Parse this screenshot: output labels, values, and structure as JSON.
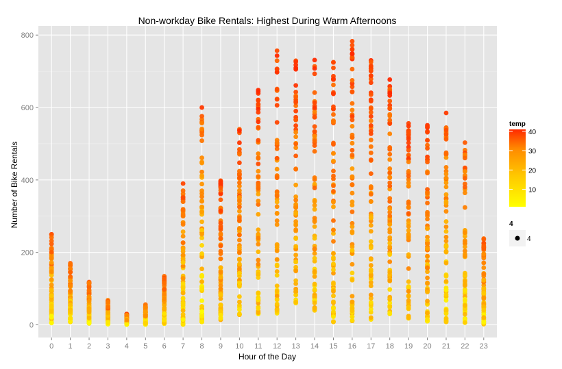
{
  "chart_data": {
    "type": "scatter",
    "title": "Non-workday Bike Rentals: Highest During Warm Afternoons",
    "xlabel": "Hour of the Day",
    "ylabel": "Number of Bike Rentals",
    "x_ticks": [
      "0",
      "1",
      "2",
      "3",
      "4",
      "5",
      "6",
      "7",
      "8",
      "9",
      "10",
      "11",
      "12",
      "13",
      "14",
      "15",
      "16",
      "17",
      "18",
      "19",
      "20",
      "21",
      "22",
      "23"
    ],
    "y_ticks": [
      0,
      200,
      400,
      600,
      800
    ],
    "xlim": [
      -0.7,
      23.7
    ],
    "ylim": [
      -35,
      825
    ],
    "grid": true,
    "color_legend": {
      "title": "temp",
      "ticks": [
        10,
        20,
        30,
        40
      ],
      "range": [
        1,
        41
      ],
      "low_color": "#FFFF00",
      "high_color": "#FF2A00"
    },
    "size_legend": {
      "title": "4",
      "label": "4"
    },
    "legend_position": "right",
    "hour_ranges": [
      {
        "hour": 0,
        "min": 5,
        "max": 250
      },
      {
        "hour": 1,
        "min": 8,
        "max": 170
      },
      {
        "hour": 2,
        "min": 4,
        "max": 118
      },
      {
        "hour": 3,
        "min": 2,
        "max": 68
      },
      {
        "hour": 4,
        "min": 1,
        "max": 30
      },
      {
        "hour": 5,
        "min": 1,
        "max": 56
      },
      {
        "hour": 6,
        "min": 3,
        "max": 134
      },
      {
        "hour": 7,
        "min": 1,
        "max": 390
      },
      {
        "hour": 8,
        "min": 8,
        "max": 600
      },
      {
        "hour": 9,
        "min": 14,
        "max": 398
      },
      {
        "hour": 10,
        "min": 28,
        "max": 540
      },
      {
        "hour": 11,
        "min": 30,
        "max": 648
      },
      {
        "hour": 12,
        "min": 32,
        "max": 757
      },
      {
        "hour": 13,
        "min": 60,
        "max": 729
      },
      {
        "hour": 14,
        "min": 40,
        "max": 731
      },
      {
        "hour": 15,
        "min": 8,
        "max": 725
      },
      {
        "hour": 16,
        "min": 11,
        "max": 783
      },
      {
        "hour": 17,
        "min": 15,
        "max": 730
      },
      {
        "hour": 18,
        "min": 30,
        "max": 677
      },
      {
        "hour": 19,
        "min": 18,
        "max": 556
      },
      {
        "hour": 20,
        "min": 10,
        "max": 551
      },
      {
        "hour": 21,
        "min": 8,
        "max": 585
      },
      {
        "hour": 22,
        "min": 6,
        "max": 503
      },
      {
        "hour": 23,
        "min": 2,
        "max": 238
      }
    ]
  },
  "colors": {
    "panel": "#E5E5E5",
    "grid": "#FFFFFF",
    "tick_text": "#7F7F7F"
  }
}
